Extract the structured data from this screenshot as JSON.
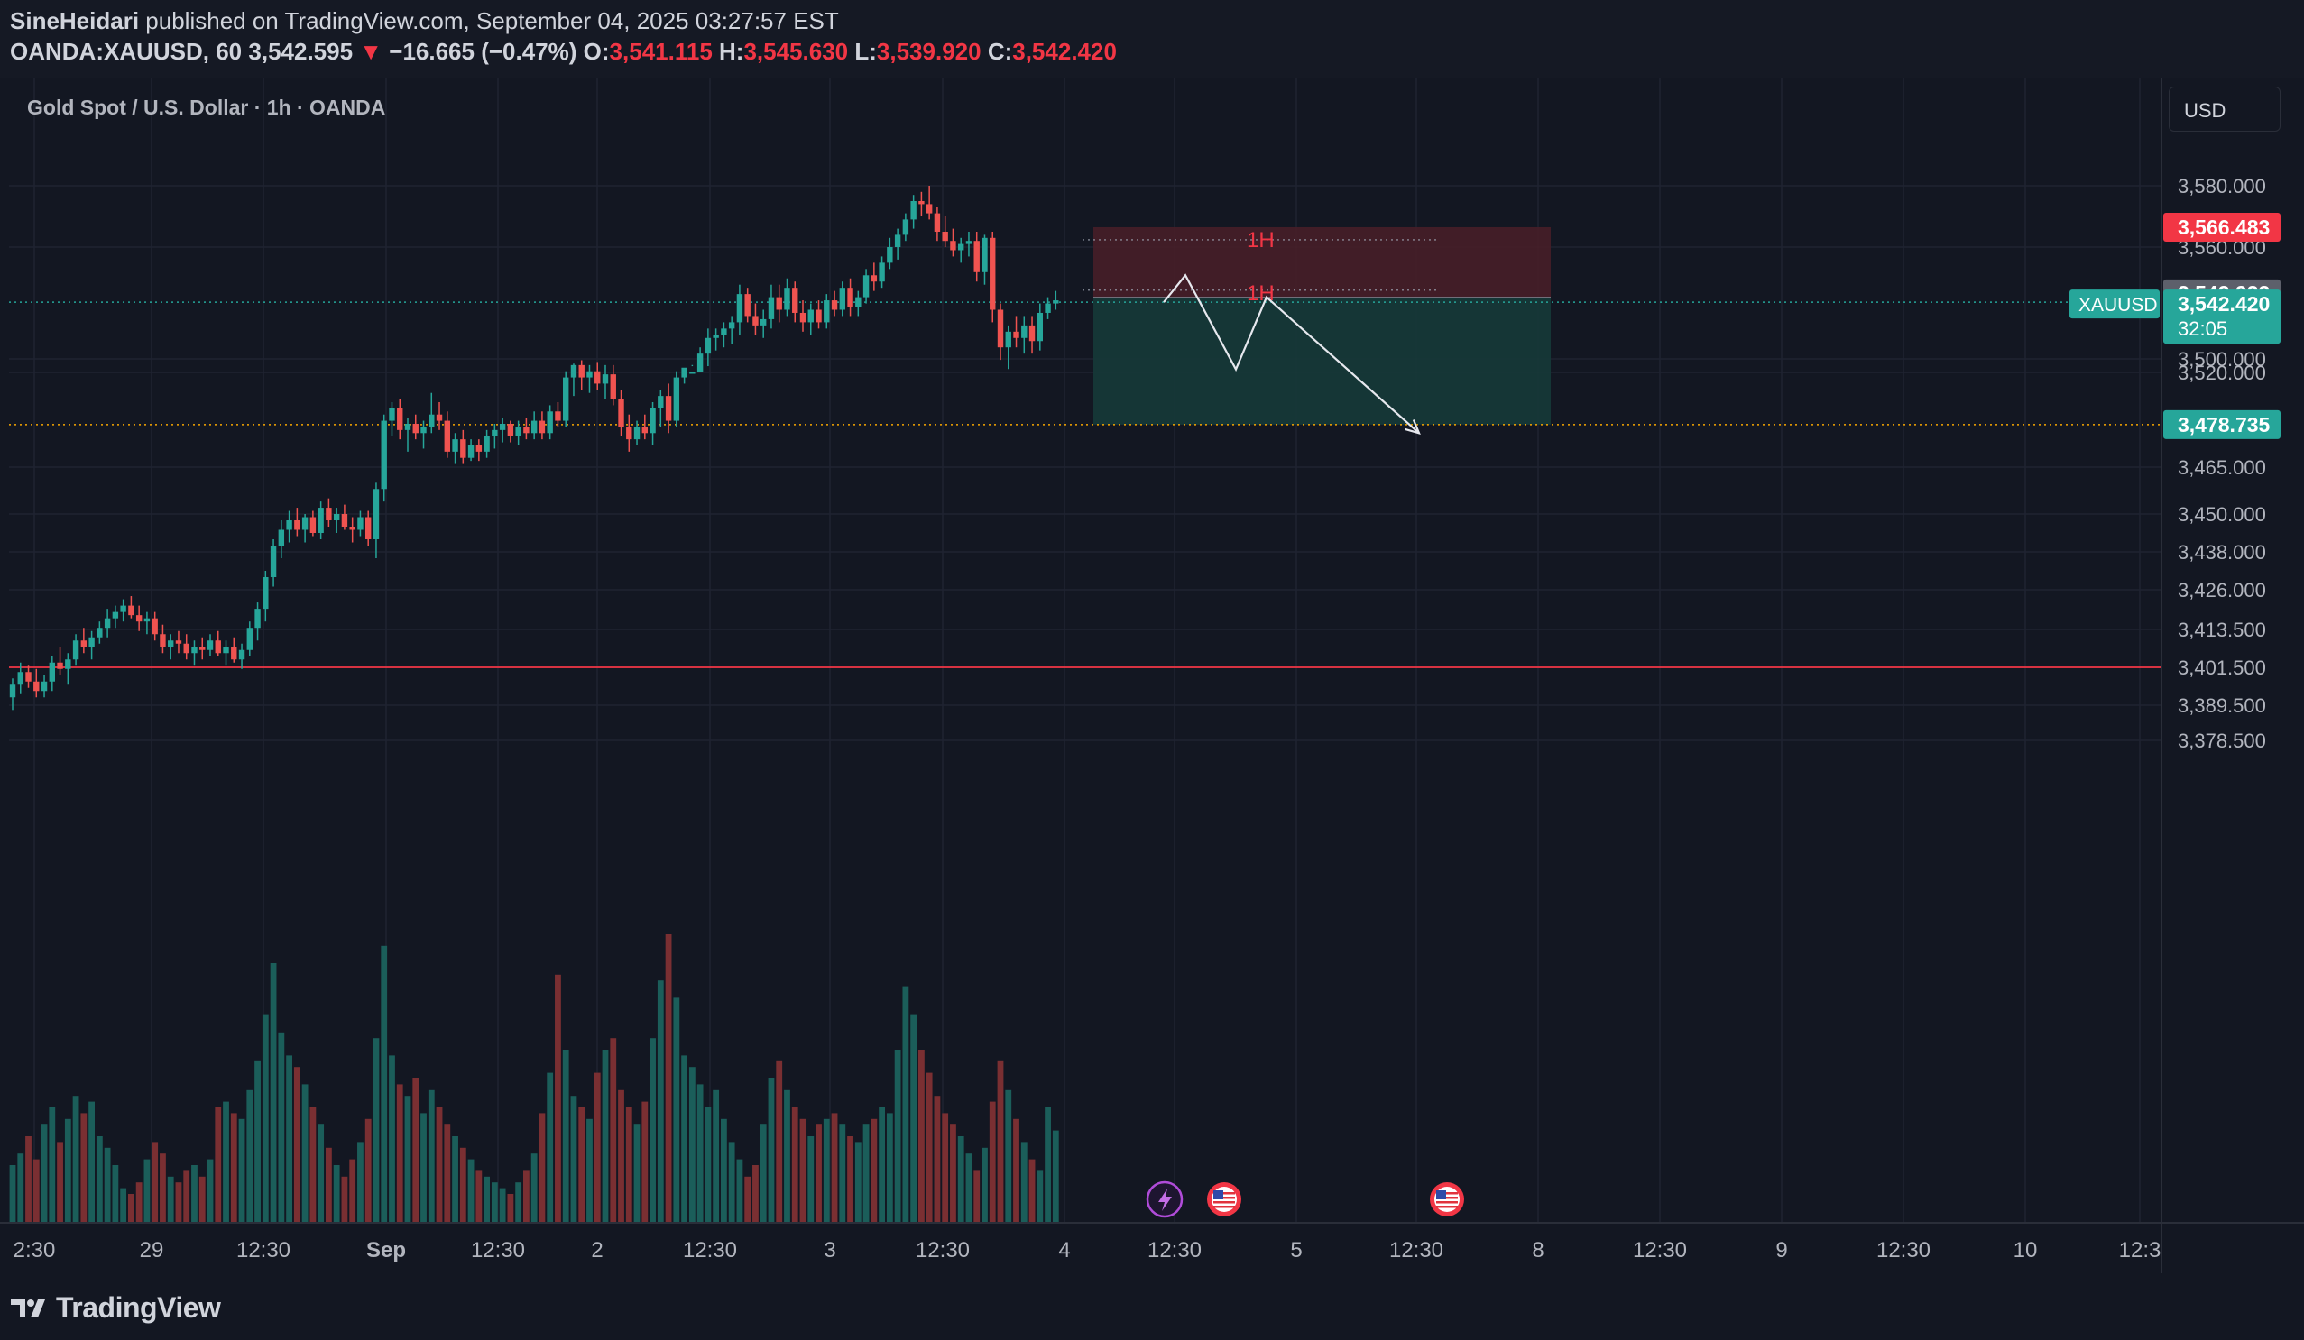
{
  "header": {
    "author": "SineHeidari",
    "published": "published on TradingView.com, September 04, 2025 03:27:57 EST",
    "symbol": "OANDA:XAUUSD, 60",
    "last": "3,542.595",
    "arrow": "▼",
    "change": "−16.665 (−0.47%)",
    "o_label": "O:",
    "o": "3,541.115",
    "h_label": "H:",
    "h": "3,545.630",
    "l_label": "L:",
    "l": "3,539.920",
    "c_label": "C:",
    "c": "3,542.420"
  },
  "legend": {
    "title": "Gold Spot / U.S. Dollar · 1h · OANDA"
  },
  "currency_button": "USD",
  "footer": {
    "brand": "TradingView"
  },
  "colors": {
    "background": "#131722",
    "up": "#26a69a",
    "down": "#ef5350",
    "volume_up": "#1b5e5a",
    "volume_down": "#7a2f32",
    "stop_zone": "#4a1f28",
    "target_zone": "#163a39",
    "red_line": "#f23645",
    "orange_line": "#f7a600",
    "accent_teal": "#26a69a"
  },
  "chart_data": {
    "type": "candlestick",
    "symbol": "XAUUSD",
    "interval": "1h",
    "currency": "USD",
    "y_ticks": [
      "3,580.000",
      "3,560.000",
      "3,520.000",
      "3,500.000",
      "3,465.000",
      "3,450.000",
      "3,438.000",
      "3,426.000",
      "3,413.500",
      "3,401.500",
      "3,389.500",
      "3,378.500"
    ],
    "x_ticks": [
      "2:30",
      "29",
      "12:30",
      "Sep",
      "12:30",
      "2",
      "12:30",
      "3",
      "12:30",
      "4",
      "12:30",
      "5",
      "12:30",
      "8",
      "12:30",
      "9",
      "12:30",
      "10",
      "12:3"
    ],
    "price_labels": {
      "stop": "3,566.483",
      "entry": "3,543.933",
      "last_symbol": "XAUUSD",
      "last": "3,542.420",
      "countdown": "32:05",
      "target": "3,478.735"
    },
    "horizontal_lines": {
      "red": 3401.5,
      "orange": 3478.735,
      "current": 3542.42
    },
    "annotations": {
      "top_label": "1H",
      "entry_label": "1H"
    },
    "position": {
      "type": "short",
      "entry": 3543.933,
      "stop": 3566.483,
      "target": 3478.735
    },
    "projection_path_prices": [
      3542.4,
      3551,
      3521,
      3544,
      3476
    ],
    "candles": [
      [
        3392,
        3398,
        3388,
        3396
      ],
      [
        3396,
        3403,
        3393,
        3400
      ],
      [
        3400,
        3402,
        3395,
        3397
      ],
      [
        3397,
        3401,
        3392,
        3394
      ],
      [
        3394,
        3399,
        3392,
        3397
      ],
      [
        3397,
        3405,
        3394,
        3403
      ],
      [
        3403,
        3408,
        3399,
        3401
      ],
      [
        3401,
        3406,
        3396,
        3404
      ],
      [
        3404,
        3412,
        3402,
        3410
      ],
      [
        3410,
        3414,
        3406,
        3408
      ],
      [
        3408,
        3413,
        3404,
        3411
      ],
      [
        3411,
        3416,
        3409,
        3414
      ],
      [
        3414,
        3420,
        3411,
        3417
      ],
      [
        3417,
        3421,
        3414,
        3419
      ],
      [
        3419,
        3423,
        3416,
        3421
      ],
      [
        3421,
        3424,
        3417,
        3418
      ],
      [
        3418,
        3421,
        3413,
        3416
      ],
      [
        3416,
        3419,
        3412,
        3417
      ],
      [
        3417,
        3419,
        3410,
        3412
      ],
      [
        3412,
        3415,
        3406,
        3408
      ],
      [
        3408,
        3412,
        3404,
        3410
      ],
      [
        3410,
        3413,
        3406,
        3409
      ],
      [
        3409,
        3412,
        3404,
        3406
      ],
      [
        3406,
        3410,
        3402,
        3408
      ],
      [
        3408,
        3411,
        3404,
        3407
      ],
      [
        3407,
        3412,
        3405,
        3410
      ],
      [
        3410,
        3413,
        3405,
        3406
      ],
      [
        3406,
        3410,
        3402,
        3408
      ],
      [
        3408,
        3411,
        3403,
        3404
      ],
      [
        3404,
        3409,
        3401,
        3407
      ],
      [
        3407,
        3416,
        3405,
        3414
      ],
      [
        3414,
        3422,
        3410,
        3420
      ],
      [
        3420,
        3432,
        3416,
        3430
      ],
      [
        3430,
        3442,
        3427,
        3440
      ],
      [
        3440,
        3448,
        3436,
        3445
      ],
      [
        3445,
        3451,
        3441,
        3448
      ],
      [
        3448,
        3452,
        3443,
        3445
      ],
      [
        3445,
        3450,
        3441,
        3449
      ],
      [
        3449,
        3451,
        3443,
        3444
      ],
      [
        3444,
        3454,
        3442,
        3452
      ],
      [
        3452,
        3455,
        3446,
        3448
      ],
      [
        3448,
        3452,
        3444,
        3450
      ],
      [
        3450,
        3453,
        3445,
        3446
      ],
      [
        3446,
        3449,
        3441,
        3445
      ],
      [
        3445,
        3451,
        3443,
        3449
      ],
      [
        3449,
        3451,
        3440,
        3442
      ],
      [
        3442,
        3460,
        3436,
        3458
      ],
      [
        3458,
        3482,
        3454,
        3480
      ],
      [
        3480,
        3486,
        3475,
        3484
      ],
      [
        3484,
        3487,
        3474,
        3477
      ],
      [
        3477,
        3481,
        3470,
        3479
      ],
      [
        3479,
        3482,
        3474,
        3476
      ],
      [
        3476,
        3480,
        3471,
        3478
      ],
      [
        3478,
        3489,
        3476,
        3482
      ],
      [
        3482,
        3486,
        3477,
        3480
      ],
      [
        3480,
        3483,
        3468,
        3470
      ],
      [
        3470,
        3476,
        3466,
        3474
      ],
      [
        3474,
        3477,
        3466,
        3468
      ],
      [
        3468,
        3474,
        3467,
        3472
      ],
      [
        3472,
        3474,
        3467,
        3470
      ],
      [
        3470,
        3477,
        3468,
        3475
      ],
      [
        3475,
        3479,
        3471,
        3477
      ],
      [
        3477,
        3481,
        3473,
        3479
      ],
      [
        3479,
        3480,
        3473,
        3475
      ],
      [
        3475,
        3480,
        3472,
        3478
      ],
      [
        3478,
        3481,
        3474,
        3476
      ],
      [
        3476,
        3483,
        3474,
        3480
      ],
      [
        3480,
        3483,
        3474,
        3476
      ],
      [
        3476,
        3485,
        3474,
        3483
      ],
      [
        3483,
        3486,
        3478,
        3480
      ],
      [
        3480,
        3496,
        3478,
        3494
      ],
      [
        3494,
        3507,
        3488,
        3498
      ],
      [
        3498,
        3502,
        3490,
        3494
      ],
      [
        3494,
        3498,
        3489,
        3496
      ],
      [
        3496,
        3499,
        3490,
        3492
      ],
      [
        3492,
        3498,
        3487,
        3495
      ],
      [
        3495,
        3498,
        3485,
        3487
      ],
      [
        3487,
        3490,
        3475,
        3478
      ],
      [
        3478,
        3482,
        3470,
        3474
      ],
      [
        3474,
        3480,
        3472,
        3478
      ],
      [
        3478,
        3482,
        3474,
        3476
      ],
      [
        3476,
        3486,
        3472,
        3484
      ],
      [
        3484,
        3490,
        3478,
        3488
      ],
      [
        3488,
        3492,
        3476,
        3480
      ],
      [
        3480,
        3496,
        3478,
        3494
      ],
      [
        3494,
        3515,
        3492,
        3513
      ],
      [
        3513,
        3522,
        3509,
        3520
      ],
      [
        3520,
        3528,
        3516,
        3526
      ],
      [
        3526,
        3534,
        3522,
        3531
      ],
      [
        3531,
        3534,
        3527,
        3532
      ],
      [
        3532,
        3536,
        3528,
        3534
      ],
      [
        3534,
        3538,
        3529,
        3536
      ],
      [
        3536,
        3548,
        3532,
        3545
      ],
      [
        3545,
        3547,
        3536,
        3538
      ],
      [
        3538,
        3542,
        3532,
        3535
      ],
      [
        3535,
        3540,
        3531,
        3537
      ],
      [
        3537,
        3548,
        3534,
        3544
      ],
      [
        3544,
        3548,
        3536,
        3540
      ],
      [
        3540,
        3550,
        3538,
        3547
      ],
      [
        3547,
        3549,
        3536,
        3539
      ],
      [
        3539,
        3543,
        3533,
        3536
      ],
      [
        3536,
        3542,
        3532,
        3540
      ],
      [
        3540,
        3543,
        3534,
        3536
      ],
      [
        3536,
        3545,
        3534,
        3543
      ],
      [
        3543,
        3546,
        3538,
        3540
      ],
      [
        3540,
        3549,
        3538,
        3547
      ],
      [
        3547,
        3550,
        3538,
        3541
      ],
      [
        3541,
        3546,
        3538,
        3544
      ],
      [
        3544,
        3553,
        3542,
        3551
      ],
      [
        3551,
        3555,
        3546,
        3549
      ],
      [
        3549,
        3557,
        3547,
        3555
      ],
      [
        3555,
        3563,
        3553,
        3560
      ],
      [
        3560,
        3566,
        3556,
        3564
      ],
      [
        3564,
        3571,
        3562,
        3569
      ],
      [
        3569,
        3577,
        3566,
        3575
      ],
      [
        3575,
        3578,
        3570,
        3574
      ],
      [
        3574,
        3580,
        3569,
        3571
      ],
      [
        3571,
        3573,
        3562,
        3565
      ],
      [
        3565,
        3570,
        3560,
        3562
      ],
      [
        3562,
        3566,
        3557,
        3559
      ],
      [
        3559,
        3563,
        3555,
        3561
      ],
      [
        3561,
        3565,
        3557,
        3562
      ],
      [
        3562,
        3565,
        3549,
        3552
      ],
      [
        3552,
        3564,
        3548,
        3563
      ],
      [
        3563,
        3565,
        3536,
        3540
      ],
      [
        3540,
        3542,
        3524,
        3528
      ],
      [
        3528,
        3535,
        3515,
        3533
      ],
      [
        3533,
        3538,
        3528,
        3531
      ],
      [
        3531,
        3538,
        3526,
        3535
      ],
      [
        3535,
        3538,
        3526,
        3530
      ],
      [
        3530,
        3542,
        3527,
        3539
      ],
      [
        3539,
        3544,
        3537,
        3542
      ],
      [
        3542,
        3546,
        3540,
        3543
      ]
    ],
    "volumes": [
      0.2,
      0.24,
      0.3,
      0.22,
      0.34,
      0.4,
      0.28,
      0.36,
      0.44,
      0.38,
      0.42,
      0.3,
      0.26,
      0.2,
      0.12,
      0.1,
      0.14,
      0.22,
      0.28,
      0.24,
      0.16,
      0.14,
      0.18,
      0.2,
      0.16,
      0.22,
      0.4,
      0.42,
      0.38,
      0.36,
      0.46,
      0.56,
      0.72,
      0.9,
      0.66,
      0.58,
      0.54,
      0.48,
      0.4,
      0.34,
      0.26,
      0.2,
      0.16,
      0.22,
      0.28,
      0.36,
      0.64,
      0.96,
      0.58,
      0.48,
      0.44,
      0.5,
      0.38,
      0.46,
      0.4,
      0.34,
      0.3,
      0.26,
      0.22,
      0.18,
      0.16,
      0.14,
      0.12,
      0.1,
      0.14,
      0.18,
      0.24,
      0.38,
      0.52,
      0.86,
      0.6,
      0.44,
      0.4,
      0.36,
      0.52,
      0.6,
      0.64,
      0.46,
      0.4,
      0.34,
      0.42,
      0.64,
      0.84,
      1.0,
      0.78,
      0.58,
      0.54,
      0.48,
      0.4,
      0.46,
      0.36,
      0.28,
      0.22,
      0.16,
      0.2,
      0.34,
      0.5,
      0.56,
      0.46,
      0.4,
      0.36,
      0.3,
      0.34,
      0.36,
      0.38,
      0.34,
      0.3,
      0.28,
      0.34,
      0.36,
      0.4,
      0.38,
      0.6,
      0.82,
      0.72,
      0.6,
      0.52,
      0.44,
      0.38,
      0.34,
      0.3,
      0.24,
      0.18,
      0.26,
      0.42,
      0.56,
      0.46,
      0.36,
      0.28,
      0.22,
      0.18,
      0.4,
      0.32
    ]
  }
}
